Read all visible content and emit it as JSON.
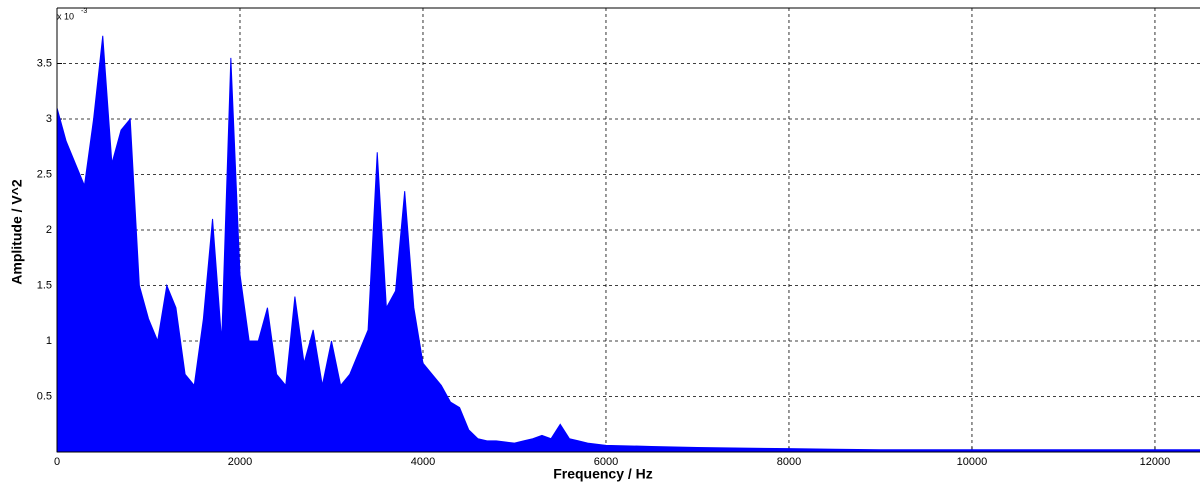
{
  "chart_data": {
    "type": "line",
    "xlabel": "Frequency / Hz",
    "ylabel": "Amplitude / V^2",
    "axis_multiplier": {
      "base": "x 10",
      "exponent": "-3"
    },
    "xlim": [
      0,
      12500
    ],
    "ylim": [
      0,
      4
    ],
    "xticks": [
      0,
      2000,
      4000,
      6000,
      8000,
      10000,
      12000
    ],
    "yticks": [
      0.5,
      1,
      1.5,
      2,
      2.5,
      3,
      3.5
    ],
    "grid": true,
    "series": [
      {
        "color": "#0000ff",
        "x": [
          0,
          100,
          200,
          300,
          400,
          500,
          600,
          700,
          800,
          900,
          1000,
          1100,
          1200,
          1300,
          1400,
          1500,
          1600,
          1700,
          1800,
          1900,
          2000,
          2100,
          2200,
          2300,
          2400,
          2500,
          2600,
          2700,
          2800,
          2900,
          3000,
          3100,
          3200,
          3300,
          3400,
          3500,
          3600,
          3700,
          3800,
          3900,
          4000,
          4100,
          4200,
          4300,
          4400,
          4500,
          4600,
          4700,
          4800,
          4900,
          5000,
          5100,
          5200,
          5300,
          5400,
          5500,
          5600,
          5700,
          5800,
          5900,
          6000,
          6500,
          7000,
          7500,
          8000,
          8500,
          9000,
          9500,
          10000,
          11000,
          12000,
          12500
        ],
        "values": [
          3.1,
          2.8,
          2.6,
          2.4,
          3.0,
          3.75,
          2.6,
          2.9,
          3.0,
          1.5,
          1.2,
          1.0,
          1.5,
          1.3,
          0.7,
          0.6,
          1.2,
          2.1,
          1.0,
          3.55,
          1.6,
          1.0,
          1.0,
          1.3,
          0.7,
          0.6,
          1.4,
          0.8,
          1.1,
          0.6,
          1.0,
          0.6,
          0.7,
          0.9,
          1.1,
          2.7,
          1.3,
          1.45,
          2.35,
          1.3,
          0.8,
          0.7,
          0.6,
          0.45,
          0.4,
          0.2,
          0.12,
          0.1,
          0.1,
          0.09,
          0.08,
          0.1,
          0.12,
          0.15,
          0.12,
          0.25,
          0.12,
          0.1,
          0.08,
          0.07,
          0.06,
          0.05,
          0.04,
          0.035,
          0.03,
          0.025,
          0.02,
          0.02,
          0.02,
          0.02,
          0.02,
          0.02
        ]
      }
    ]
  }
}
